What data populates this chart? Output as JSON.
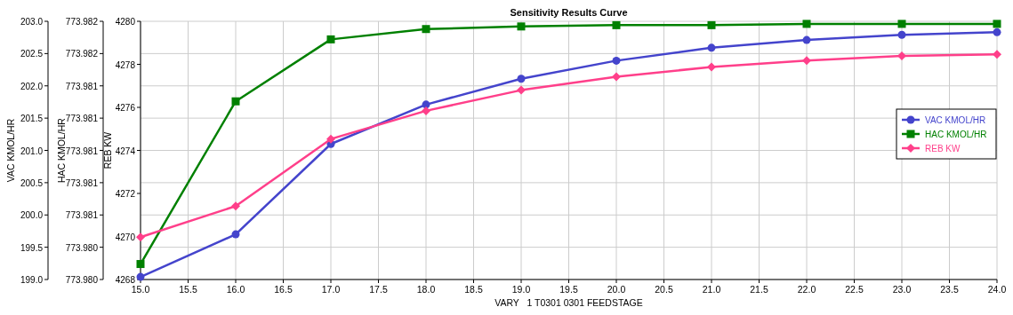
{
  "chart_data": {
    "type": "line",
    "title": "Sensitivity Results Curve",
    "xlabel": "VARY   1 T0301 0301 FEEDSTAGE",
    "ylabel": "VAC KMOL/HR",
    "y2label": "HAC KMOL/HR",
    "y3label": "REB KW",
    "x": [
      15,
      16,
      17,
      18,
      19,
      20,
      21,
      22,
      23,
      24
    ],
    "xlim": [
      15,
      24
    ],
    "xticks": [
      {
        "value": 15,
        "label": "15.0"
      },
      {
        "value": 15.5,
        "label": "15.5"
      },
      {
        "value": 16,
        "label": "16.0"
      },
      {
        "value": 16.5,
        "label": "16.5"
      },
      {
        "value": 17,
        "label": "17.0"
      },
      {
        "value": 17.5,
        "label": "17.5"
      },
      {
        "value": 18,
        "label": "18.0"
      },
      {
        "value": 18.5,
        "label": "18.5"
      },
      {
        "value": 19,
        "label": "19.0"
      },
      {
        "value": 19.5,
        "label": "19.5"
      },
      {
        "value": 20,
        "label": "20.0"
      },
      {
        "value": 20.5,
        "label": "20.5"
      },
      {
        "value": 21,
        "label": "21.0"
      },
      {
        "value": 21.5,
        "label": "21.5"
      },
      {
        "value": 22,
        "label": "22.0"
      },
      {
        "value": 22.5,
        "label": "22.5"
      },
      {
        "value": 23,
        "label": "23.0"
      },
      {
        "value": 23.5,
        "label": "23.5"
      },
      {
        "value": 24,
        "label": "24.0"
      }
    ],
    "ylim": [
      199,
      203
    ],
    "yticks": [
      {
        "value": 199,
        "label": "199.0"
      },
      199.5,
      {
        "value": 200,
        "label": "200.0"
      },
      200.5,
      {
        "value": 201,
        "label": "201.0"
      },
      201.5,
      {
        "value": 202,
        "label": "202.0"
      },
      202.5,
      {
        "value": 203,
        "label": "203.0"
      }
    ],
    "y2lim": [
      773.98,
      773.982
    ],
    "y2ticks": [
      {
        "value": 773.98,
        "label": "773.980"
      },
      {
        "value": 773.98025,
        "label": "773.980"
      },
      {
        "value": 773.9805,
        "label": "773.981"
      },
      {
        "value": 773.98075,
        "label": "773.981"
      },
      {
        "value": 773.981,
        "label": "773.981"
      },
      {
        "value": 773.98125,
        "label": "773.981"
      },
      {
        "value": 773.9815,
        "label": "773.981"
      },
      {
        "value": 773.98175,
        "label": "773.982"
      },
      {
        "value": 773.982,
        "label": "773.982"
      }
    ],
    "y3lim": [
      4268,
      4280
    ],
    "y3ticks": [
      4268,
      4270,
      4272,
      4274,
      4276,
      4278,
      4280
    ],
    "grid": true,
    "legend": "top right",
    "line_style": "solid",
    "series": [
      {
        "name": "VAC KMOL/HR",
        "color": "#4444cc",
        "marker": "circle",
        "axis": "y",
        "values": [
          199.04,
          199.7,
          201.1,
          201.71,
          202.11,
          202.39,
          202.59,
          202.71,
          202.79,
          202.83
        ]
      },
      {
        "name": "HAC KMOL/HR",
        "color": "#008000",
        "marker": "square",
        "axis": "y2",
        "values": [
          773.98012,
          773.98138,
          773.98186,
          773.98194,
          773.98196,
          773.98197,
          773.98197,
          773.98198,
          773.98198,
          773.98198
        ]
      },
      {
        "name": "REB KW",
        "color": "#ff3f8a",
        "marker": "diamond",
        "axis": "y3",
        "values": [
          4269.97,
          4271.41,
          4274.53,
          4275.84,
          4276.8,
          4277.42,
          4277.88,
          4278.18,
          4278.39,
          4278.46
        ]
      }
    ]
  }
}
